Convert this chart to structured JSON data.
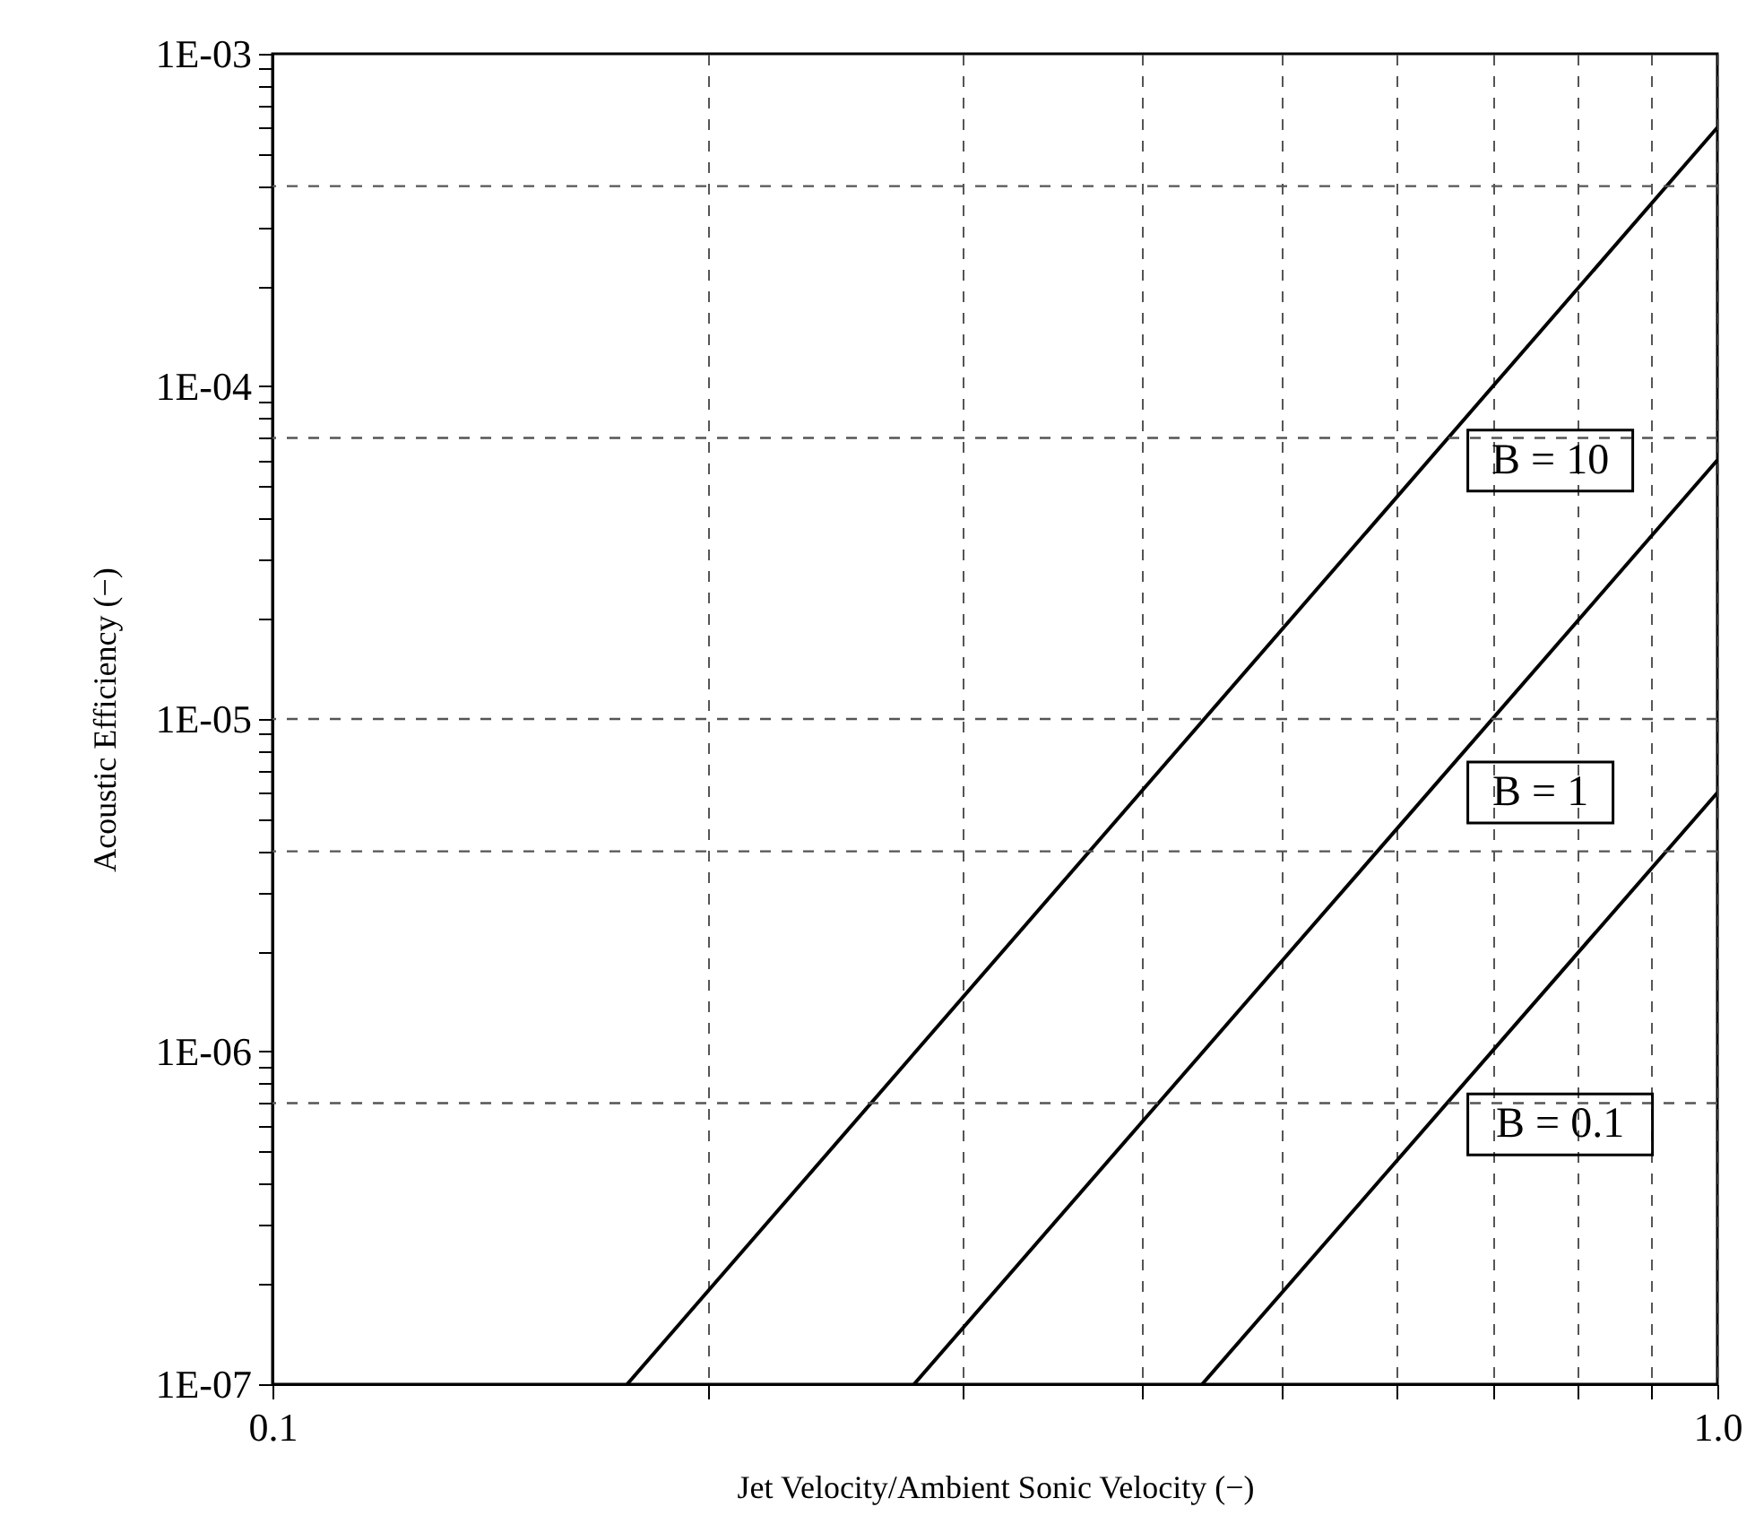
{
  "chart_data": {
    "type": "line",
    "xlabel": "Jet Velocity/Ambient Sonic Velocity (−)",
    "ylabel": "Acoustic Efficiency (−)",
    "log": "xy",
    "xlim": [
      0.1,
      1.0
    ],
    "xticks": [
      0.1,
      {
        "value": 0.2,
        "label": null
      },
      {
        "value": 0.3,
        "label": null
      },
      {
        "value": 0.4,
        "label": null
      },
      {
        "value": 0.5,
        "label": null
      },
      {
        "value": 0.6,
        "label": null
      },
      {
        "value": 0.7,
        "label": null
      },
      {
        "value": 0.8,
        "label": null
      },
      {
        "value": 0.9,
        "label": null
      },
      {
        "value": 1.0,
        "label": "1.0"
      }
    ],
    "ylim": [
      1e-07,
      0.001
    ],
    "yticks": [
      {
        "value": 1e-07,
        "label": "1E-07"
      },
      {
        "value": 2e-07,
        "label": null
      },
      {
        "value": 3e-07,
        "label": null
      },
      {
        "value": 4e-07,
        "label": null
      },
      {
        "value": 5e-07,
        "label": null
      },
      {
        "value": 6e-07,
        "label": null
      },
      {
        "value": 7e-07,
        "label": null
      },
      {
        "value": 8e-07,
        "label": null
      },
      {
        "value": 9e-07,
        "label": null
      },
      {
        "value": 1e-06,
        "label": "1E-06"
      },
      {
        "value": 2e-06,
        "label": null
      },
      {
        "value": 3e-06,
        "label": null
      },
      {
        "value": 4e-06,
        "label": null
      },
      {
        "value": 5e-06,
        "label": null
      },
      {
        "value": 6e-06,
        "label": null
      },
      {
        "value": 7e-06,
        "label": null
      },
      {
        "value": 8e-06,
        "label": null
      },
      {
        "value": 9e-06,
        "label": null
      },
      {
        "value": 1e-05,
        "label": "1E-05"
      },
      {
        "value": 2e-05,
        "label": null
      },
      {
        "value": 3e-05,
        "label": null
      },
      {
        "value": 4e-05,
        "label": null
      },
      {
        "value": 5e-05,
        "label": null
      },
      {
        "value": 6e-05,
        "label": null
      },
      {
        "value": 7e-05,
        "label": null
      },
      {
        "value": 8e-05,
        "label": null
      },
      {
        "value": 9e-05,
        "label": null
      },
      {
        "value": 0.0001,
        "label": "1E-04"
      },
      {
        "value": 0.0002,
        "label": null
      },
      {
        "value": 0.0003,
        "label": null
      },
      {
        "value": 0.0004,
        "label": null
      },
      {
        "value": 0.0005,
        "label": null
      },
      {
        "value": 0.0006,
        "label": null
      },
      {
        "value": 0.0007,
        "label": null
      },
      {
        "value": 0.0008,
        "label": null
      },
      {
        "value": 0.0009,
        "label": null
      },
      {
        "value": 0.001,
        "label": "1E-03"
      }
    ],
    "grid": "x",
    "ref_lines": [
      {
        "axis": "y",
        "value": 0.0004,
        "line_style": "dashed",
        "color": "#555555"
      },
      {
        "axis": "y",
        "value": 7e-05,
        "line_style": "dashed",
        "color": "#555555"
      },
      {
        "axis": "y",
        "value": 1e-05,
        "line_style": "dashed",
        "color": "#555555"
      },
      {
        "axis": "y",
        "value": 4e-06,
        "line_style": "dashed",
        "color": "#555555"
      },
      {
        "axis": "y",
        "value": 7e-07,
        "line_style": "dashed",
        "color": "#555555"
      }
    ],
    "series": [
      {
        "name": "B = 10",
        "color": "#000000",
        "x": [
          0.176,
          1.0
        ],
        "values": [
          1e-07,
          0.0006
        ]
      },
      {
        "name": "B = 1",
        "color": "#000000",
        "x": [
          0.278,
          1.0
        ],
        "values": [
          1e-07,
          6e-05
        ]
      },
      {
        "name": "B = 0.1",
        "color": "#000000",
        "x": [
          0.44,
          1.0
        ],
        "values": [
          1e-07,
          6e-06
        ]
      }
    ]
  }
}
